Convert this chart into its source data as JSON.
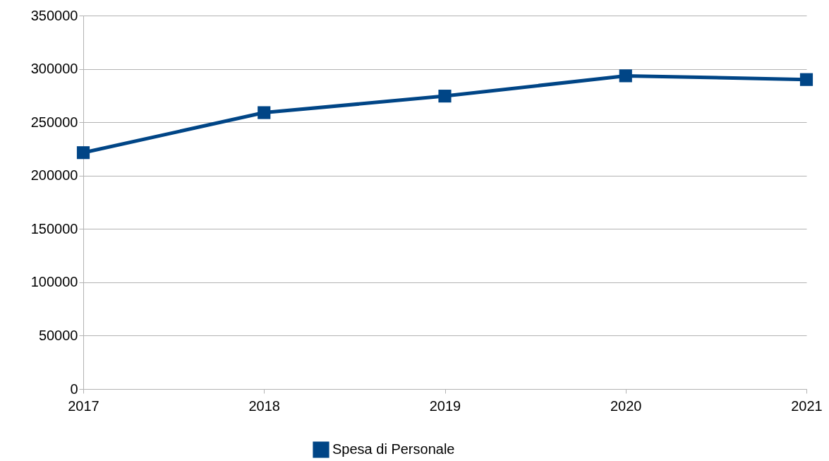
{
  "chart_data": {
    "type": "line",
    "categories": [
      "2017",
      "2018",
      "2019",
      "2020",
      "2021"
    ],
    "series": [
      {
        "name": "Spesa di Personale",
        "color": "#004586",
        "values": [
          221500,
          259000,
          274500,
          293500,
          290000
        ]
      }
    ],
    "ylim": [
      0,
      350000
    ],
    "yticks": [
      0,
      50000,
      100000,
      150000,
      200000,
      250000,
      300000,
      350000
    ],
    "grid": "y",
    "legend": "bottom",
    "marker": "square",
    "line_style": "solid"
  }
}
